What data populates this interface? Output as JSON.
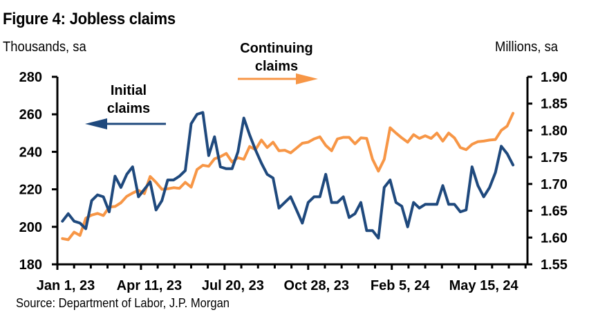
{
  "figure": {
    "title": "Figure 4: Jobless claims",
    "left_unit": "Thousands, sa",
    "right_unit": "Millions, sa",
    "source": "Source: Department of Labor, J.P. Morgan"
  },
  "chart_data": {
    "type": "line",
    "title": "Figure 4: Jobless claims",
    "xlabel": "",
    "ylabel": "Thousands, sa",
    "y2label": "Millions, sa",
    "x_tick_labels": [
      "Jan 1, 23",
      "Apr 11, 23",
      "Jul 20, 23",
      "Oct 28, 23",
      "Feb 5, 24",
      "May 15, 24"
    ],
    "x_range": [
      "2023-01-01",
      "2024-07-13"
    ],
    "ylim": [
      180,
      280
    ],
    "yticks": [
      "180",
      "200",
      "220",
      "240",
      "260",
      "280"
    ],
    "y2lim": [
      1.55,
      1.9
    ],
    "y2ticks": [
      "1.55",
      "1.60",
      "1.65",
      "1.70",
      "1.75",
      "1.80",
      "1.85",
      "1.90"
    ],
    "grid": false,
    "x_start_week": "2023-01-07",
    "series": [
      {
        "name": "Initial claims",
        "axis": "left",
        "color": "#1F497D",
        "annotation": [
          "Initial",
          "claims"
        ],
        "arrow": "left",
        "values": [
          203,
          207,
          203,
          202,
          199,
          214,
          217,
          216,
          208,
          227,
          221,
          228,
          232,
          216,
          220,
          224,
          209,
          214,
          225,
          225,
          227,
          230,
          255,
          260,
          261,
          238,
          248,
          232,
          231,
          231,
          240,
          258,
          249,
          241,
          234,
          228,
          226,
          210,
          213,
          216,
          209,
          202,
          213,
          216,
          216,
          228,
          213,
          213,
          216,
          205,
          207,
          213,
          198,
          198,
          194,
          221,
          225,
          213,
          211,
          200,
          213,
          210,
          212,
          212,
          212,
          222,
          212,
          212,
          208,
          209,
          232,
          222,
          216,
          221,
          229,
          243,
          239,
          233
        ]
      },
      {
        "name": "Continuing claims",
        "axis": "right",
        "color": "#F79646",
        "annotation": [
          "Continuing",
          "claims"
        ],
        "arrow": "right",
        "values": [
          1.598,
          1.596,
          1.61,
          1.604,
          1.636,
          1.642,
          1.645,
          1.641,
          1.657,
          1.658,
          1.665,
          1.677,
          1.683,
          1.688,
          1.682,
          1.714,
          1.703,
          1.69,
          1.691,
          1.693,
          1.692,
          1.703,
          1.694,
          1.727,
          1.735,
          1.733,
          1.747,
          1.751,
          1.757,
          1.741,
          1.749,
          1.746,
          1.77,
          1.764,
          1.782,
          1.768,
          1.778,
          1.762,
          1.763,
          1.758,
          1.767,
          1.776,
          1.778,
          1.784,
          1.788,
          1.772,
          1.762,
          1.784,
          1.787,
          1.787,
          1.775,
          1.786,
          1.785,
          1.746,
          1.724,
          1.746,
          1.805,
          1.795,
          1.786,
          1.778,
          1.792,
          1.785,
          1.79,
          1.785,
          1.795,
          1.78,
          1.795,
          1.786,
          1.768,
          1.764,
          1.774,
          1.779,
          1.78,
          1.782,
          1.783,
          1.8,
          1.808,
          1.832
        ]
      }
    ]
  }
}
